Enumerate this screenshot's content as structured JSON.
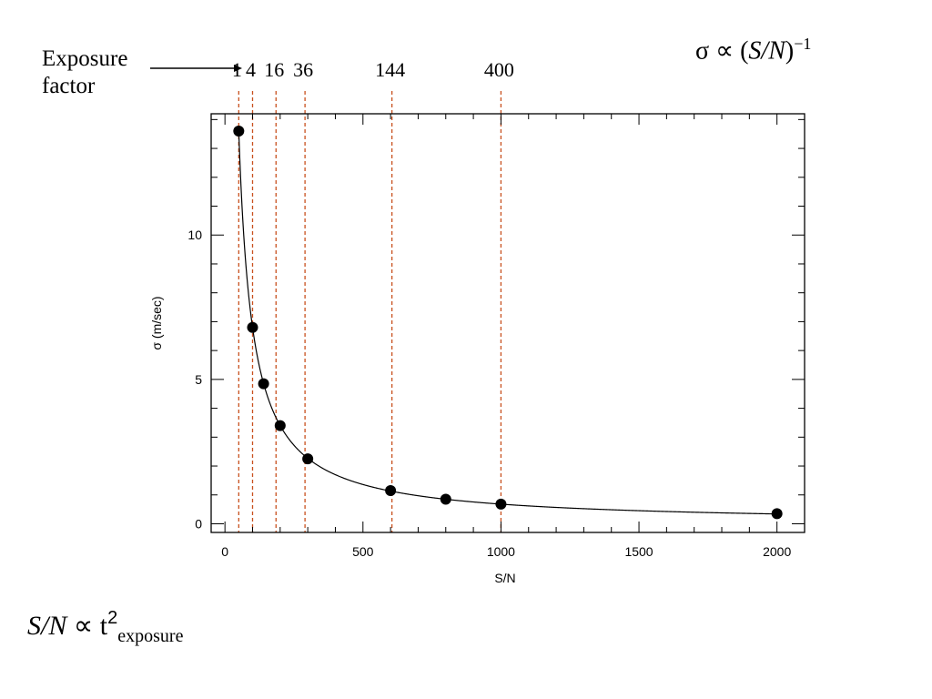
{
  "annotations": {
    "exposure_label_line1": "Exposure",
    "exposure_label_line2": "factor",
    "sigma_formula_main": "σ ∝ (",
    "sigma_formula_sn": "S/N",
    "sigma_formula_close": ")",
    "sigma_formula_exp": "−1",
    "sn_formula_sn": "S/N",
    "sn_formula_prop": " ∝ t",
    "sn_formula_sup": "2",
    "sn_formula_sub": "exposure"
  },
  "chart_data": {
    "type": "scatter",
    "xlabel": "S/N",
    "ylabel": "σ (m/sec)",
    "xlim": [
      -50,
      2100
    ],
    "ylim": [
      -0.3,
      14.2
    ],
    "xticks": [
      0,
      500,
      1000,
      1500,
      2000
    ],
    "yticks": [
      0,
      5,
      10
    ],
    "grid": false,
    "series": [
      {
        "x": [
          50,
          100,
          140,
          200,
          300,
          600,
          800,
          1000,
          2000
        ],
        "y": [
          13.6,
          6.8,
          4.85,
          3.4,
          2.25,
          1.15,
          0.85,
          0.68,
          0.35
        ]
      }
    ],
    "fit_curve": {
      "form": "y = k / x",
      "k": 680
    },
    "exposure_markers": [
      {
        "x": 50,
        "label": "1"
      },
      {
        "x": 100,
        "label": "4"
      },
      {
        "x": 185,
        "label": "16"
      },
      {
        "x": 290,
        "label": "36"
      },
      {
        "x": 605,
        "label": "144"
      },
      {
        "x": 1000,
        "label": "400"
      }
    ],
    "marker_color": "#c8501e"
  }
}
